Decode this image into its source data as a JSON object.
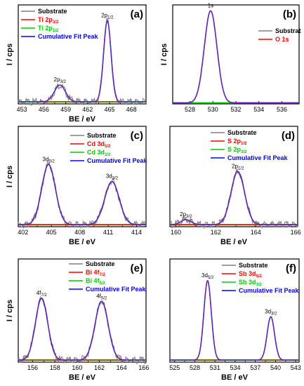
{
  "figure": {
    "type": "multi-panel XPS figure"
  },
  "chart_data": [
    {
      "type": "line",
      "panel_label": "(a)",
      "xlabel": "BE / eV",
      "ylabel": "I / cps",
      "xlim": [
        452.5,
        470
      ],
      "ylim": [
        0,
        1
      ],
      "xticks": [
        "453",
        "456",
        "459",
        "462",
        "465",
        "468"
      ],
      "xtick_values": [
        453,
        456,
        459,
        462,
        465,
        468
      ],
      "legend": [
        {
          "label": "Substrate",
          "sub": "",
          "color": "#808080"
        },
        {
          "label": "Ti 2p",
          "sub": "3/2",
          "color": "#ff0000"
        },
        {
          "label": "Ti 2p",
          "sub": "1/2",
          "color": "#00cc00"
        },
        {
          "label": "Cumulative Fit Peak",
          "sub": "",
          "color": "#0000ff"
        }
      ],
      "peaks": [
        {
          "center": 458.2,
          "height": 0.17,
          "fwhm": 1.8,
          "label": "2p",
          "sub": "3/2"
        },
        {
          "center": 464.7,
          "height": 0.82,
          "fwhm": 1.2,
          "label": "2p",
          "sub": "1/2"
        }
      ],
      "baseline": 0.02,
      "noise": true
    },
    {
      "type": "line",
      "panel_label": "(b)",
      "xlabel": "",
      "ylabel": "I / cps",
      "xlim": [
        526.5,
        537.5
      ],
      "ylim": [
        0,
        1
      ],
      "xticks": [
        "528",
        "530",
        "532",
        "534",
        "536"
      ],
      "xtick_values": [
        528,
        530,
        532,
        534,
        536
      ],
      "legend": [
        {
          "label": "Substrat",
          "sub": "",
          "color": "#808080"
        },
        {
          "label": "O 1s",
          "sub": "",
          "color": "#ff0000"
        }
      ],
      "peaks": [
        {
          "center": 529.8,
          "height": 0.93,
          "fwhm": 1.3,
          "label": "1s",
          "sub": ""
        }
      ],
      "baseline": 0.01,
      "noise": false
    },
    {
      "type": "line",
      "panel_label": "(c)",
      "xlabel": "BE / eV",
      "ylabel": "I / cps",
      "xlim": [
        401.5,
        415
      ],
      "ylim": [
        0,
        1
      ],
      "xticks": [
        "402",
        "405",
        "408",
        "411",
        "414"
      ],
      "xtick_values": [
        402,
        405,
        408,
        411,
        414
      ],
      "legend": [
        {
          "label": "Substrate",
          "sub": "",
          "color": "#808080"
        },
        {
          "label": "Cd 3d",
          "sub": "5/2",
          "color": "#ff0000"
        },
        {
          "label": "Cd 3d",
          "sub": "3/2",
          "color": "#00cc00"
        },
        {
          "label": "Cumulative Fit Peak",
          "sub": "",
          "color": "#0000ff"
        }
      ],
      "peaks": [
        {
          "center": 404.7,
          "height": 0.6,
          "fwhm": 1.7,
          "label": "3d",
          "sub": "5/2"
        },
        {
          "center": 411.4,
          "height": 0.43,
          "fwhm": 1.8,
          "label": "3d",
          "sub": "3/2"
        }
      ],
      "baseline": 0.02,
      "noise": true
    },
    {
      "type": "line",
      "panel_label": "(d)",
      "xlabel": "BE / eV",
      "ylabel": "",
      "xlim": [
        159.7,
        166.1
      ],
      "ylim": [
        0,
        1
      ],
      "xticks": [
        "160",
        "162",
        "164",
        "166"
      ],
      "xtick_values": [
        160,
        162,
        164,
        166
      ],
      "legend": [
        {
          "label": "Substrate",
          "sub": "",
          "color": "#808080"
        },
        {
          "label": "S 2p",
          "sub": "1/2",
          "color": "#ff0000"
        },
        {
          "label": "S 2p",
          "sub": "3/2",
          "color": "#00cc00"
        },
        {
          "label": "Cumulative Fit Peak",
          "sub": "",
          "color": "#0000ff"
        }
      ],
      "peaks": [
        {
          "center": 160.5,
          "height": 0.05,
          "fwhm": 0.6,
          "label": "2p",
          "sub": "3/2"
        },
        {
          "center": 163.1,
          "height": 0.53,
          "fwhm": 0.8,
          "label": "2p",
          "sub": "1/2"
        }
      ],
      "baseline": 0.02,
      "noise": true
    },
    {
      "type": "line",
      "panel_label": "(e)",
      "xlabel": "BE / eV",
      "ylabel": "I / cps",
      "xlim": [
        154.7,
        166.2
      ],
      "ylim": [
        0,
        1
      ],
      "xticks": [
        "156",
        "158",
        "160",
        "162",
        "164",
        "166"
      ],
      "xtick_values": [
        156,
        158,
        160,
        162,
        164,
        166
      ],
      "legend": [
        {
          "label": "Substrate",
          "sub": "",
          "color": "#808080"
        },
        {
          "label": "Bi 4f",
          "sub": "7/2",
          "color": "#ff0000"
        },
        {
          "label": "Bi 4f",
          "sub": "5/2",
          "color": "#00cc00"
        },
        {
          "label": "Cumulative Fit Peak",
          "sub": "",
          "color": "#0000ff"
        }
      ],
      "peaks": [
        {
          "center": 156.8,
          "height": 0.6,
          "fwhm": 1.3,
          "label": "4f",
          "sub": "7/2"
        },
        {
          "center": 162.2,
          "height": 0.57,
          "fwhm": 1.4,
          "label": "4f",
          "sub": "5/2"
        }
      ],
      "baseline": 0.02,
      "noise": true
    },
    {
      "type": "line",
      "panel_label": "(f)",
      "xlabel": "BE / eV",
      "ylabel": "",
      "xlim": [
        524.3,
        543.5
      ],
      "ylim": [
        0,
        1
      ],
      "xticks": [
        "525",
        "528",
        "531",
        "534",
        "537",
        "540",
        "543"
      ],
      "xtick_values": [
        525,
        528,
        531,
        534,
        537,
        540,
        543
      ],
      "legend": [
        {
          "label": "Substrate",
          "sub": "",
          "color": "#808080"
        },
        {
          "label": "Sb 3d",
          "sub": "5/2",
          "color": "#ff0000"
        },
        {
          "label": "Sb 3d",
          "sub": "3/2",
          "color": "#00cc00"
        },
        {
          "label": "Cumulative Fit Peak",
          "sub": "",
          "color": "#0000ff"
        }
      ],
      "peaks": [
        {
          "center": 529.9,
          "height": 0.77,
          "fwhm": 1.3,
          "label": "3d",
          "sub": "5/2"
        },
        {
          "center": 539.3,
          "height": 0.42,
          "fwhm": 1.3,
          "label": "3d",
          "sub": "3/2"
        }
      ],
      "baseline": 0.02,
      "noise": false
    }
  ]
}
